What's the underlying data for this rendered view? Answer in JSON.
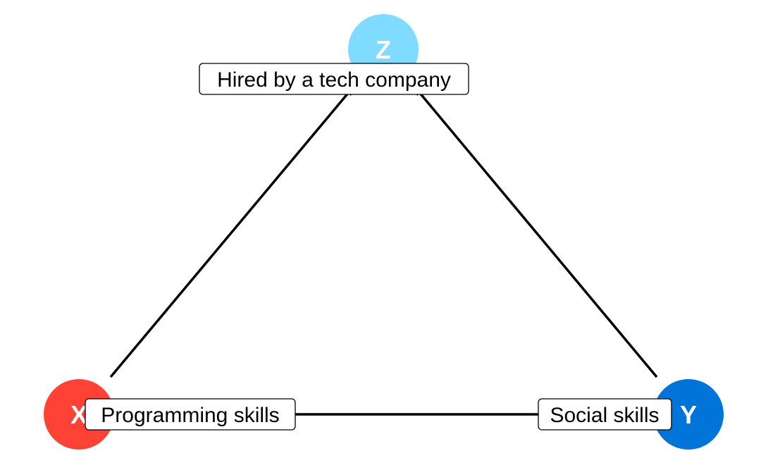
{
  "nodes": {
    "x": {
      "letter": "X",
      "label": "Programming skills",
      "color": "#ff4136"
    },
    "y": {
      "letter": "Y",
      "label": "Social skills",
      "color": "#0074d9"
    },
    "z": {
      "letter": "Z",
      "label": "Hired by a tech company",
      "color": "#7fdbff"
    }
  },
  "edges": [
    {
      "from": "x",
      "to": "z",
      "directed": true
    },
    {
      "from": "y",
      "to": "z",
      "directed": true
    },
    {
      "from": "x",
      "to": "y",
      "directed": false
    }
  ]
}
